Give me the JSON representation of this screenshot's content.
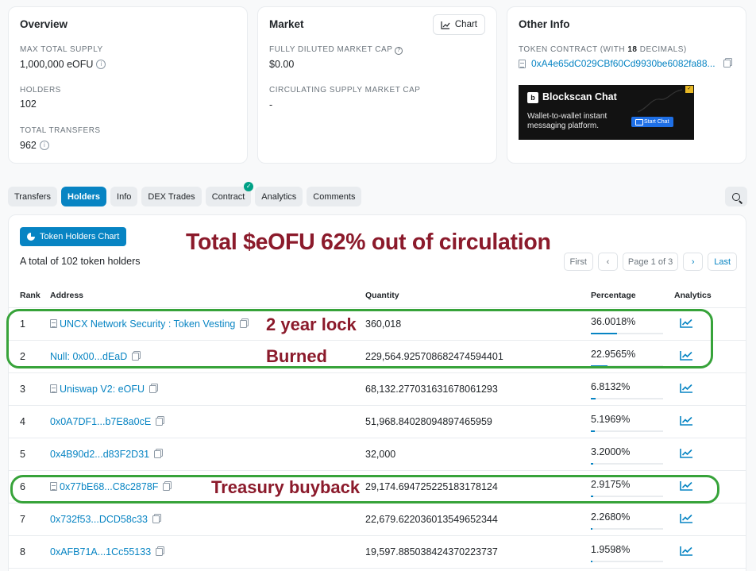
{
  "overview": {
    "title": "Overview",
    "max_supply_label": "MAX TOTAL SUPPLY",
    "max_supply_value": "1,000,000 eOFU",
    "holders_label": "HOLDERS",
    "holders_value": "102",
    "transfers_label": "TOTAL TRANSFERS",
    "transfers_value": "962"
  },
  "market": {
    "title": "Market",
    "chart_button": "Chart",
    "fdmc_label": "FULLY DILUTED MARKET CAP",
    "fdmc_value": "$0.00",
    "csmc_label": "CIRCULATING SUPPLY MARKET CAP",
    "csmc_value": "-"
  },
  "other_info": {
    "title": "Other Info",
    "contract_label_prefix": "TOKEN CONTRACT (WITH ",
    "contract_decimals": "18",
    "contract_label_suffix": " DECIMALS)",
    "contract_address": "0xA4e65dC029CBf60Cd9930be6082fa88...",
    "ad": {
      "logo": "b",
      "title": "Blockscan Chat",
      "text": "Wallet-to-wallet instant messaging platform.",
      "cta": "Start Chat"
    }
  },
  "tabs": [
    {
      "label": "Transfers"
    },
    {
      "label": "Holders",
      "active": true
    },
    {
      "label": "Info"
    },
    {
      "label": "DEX Trades"
    },
    {
      "label": "Contract",
      "verified": true
    },
    {
      "label": "Analytics"
    },
    {
      "label": "Comments"
    }
  ],
  "holders_panel": {
    "chart_button": "Token Holders Chart",
    "total_text": "A total of 102 token holders",
    "pagination": {
      "first": "First",
      "page": "Page 1 of 3",
      "last": "Last"
    },
    "columns": {
      "rank": "Rank",
      "address": "Address",
      "quantity": "Quantity",
      "percentage": "Percentage",
      "analytics": "Analytics"
    },
    "rows": [
      {
        "rank": "1",
        "address": "UNCX Network Security : Token Vesting",
        "contract": true,
        "quantity": "360,018",
        "percentage": "36.0018%",
        "pct": 36.0018
      },
      {
        "rank": "2",
        "address": "Null: 0x00...dEaD",
        "contract": false,
        "quantity": "229,564.925708682474594401",
        "percentage": "22.9565%",
        "pct": 22.9565
      },
      {
        "rank": "3",
        "address": "Uniswap V2: eOFU",
        "contract": true,
        "quantity": "68,132.277031631678061293",
        "percentage": "6.8132%",
        "pct": 6.8132
      },
      {
        "rank": "4",
        "address": "0x0A7DF1...b7E8a0cE",
        "contract": false,
        "quantity": "51,968.84028094897465959",
        "percentage": "5.1969%",
        "pct": 5.1969
      },
      {
        "rank": "5",
        "address": "0x4B90d2...d83F2D31",
        "contract": false,
        "quantity": "32,000",
        "percentage": "3.2000%",
        "pct": 3.2
      },
      {
        "rank": "6",
        "address": "0x77bE68...C8c2878F",
        "contract": true,
        "quantity": "29,174.694725225183178124",
        "percentage": "2.9175%",
        "pct": 2.9175
      },
      {
        "rank": "7",
        "address": "0x732f53...DCD58c33",
        "contract": false,
        "quantity": "22,679.622036013549652344",
        "percentage": "2.2680%",
        "pct": 2.268
      },
      {
        "rank": "8",
        "address": "0xAFB71A...1Cc55133",
        "contract": false,
        "quantity": "19,597.885038424370223737",
        "percentage": "1.9598%",
        "pct": 1.9598
      }
    ]
  },
  "annotations": {
    "headline": "Total $eOFU 62% out of circulation",
    "lock": "2 year lock",
    "burned": "Burned",
    "treasury": "Treasury buyback",
    "highlight_color": "#37a33a",
    "text_color": "#8b1a2b"
  },
  "colors": {
    "accent": "#0784c3",
    "verified": "#00a186"
  }
}
